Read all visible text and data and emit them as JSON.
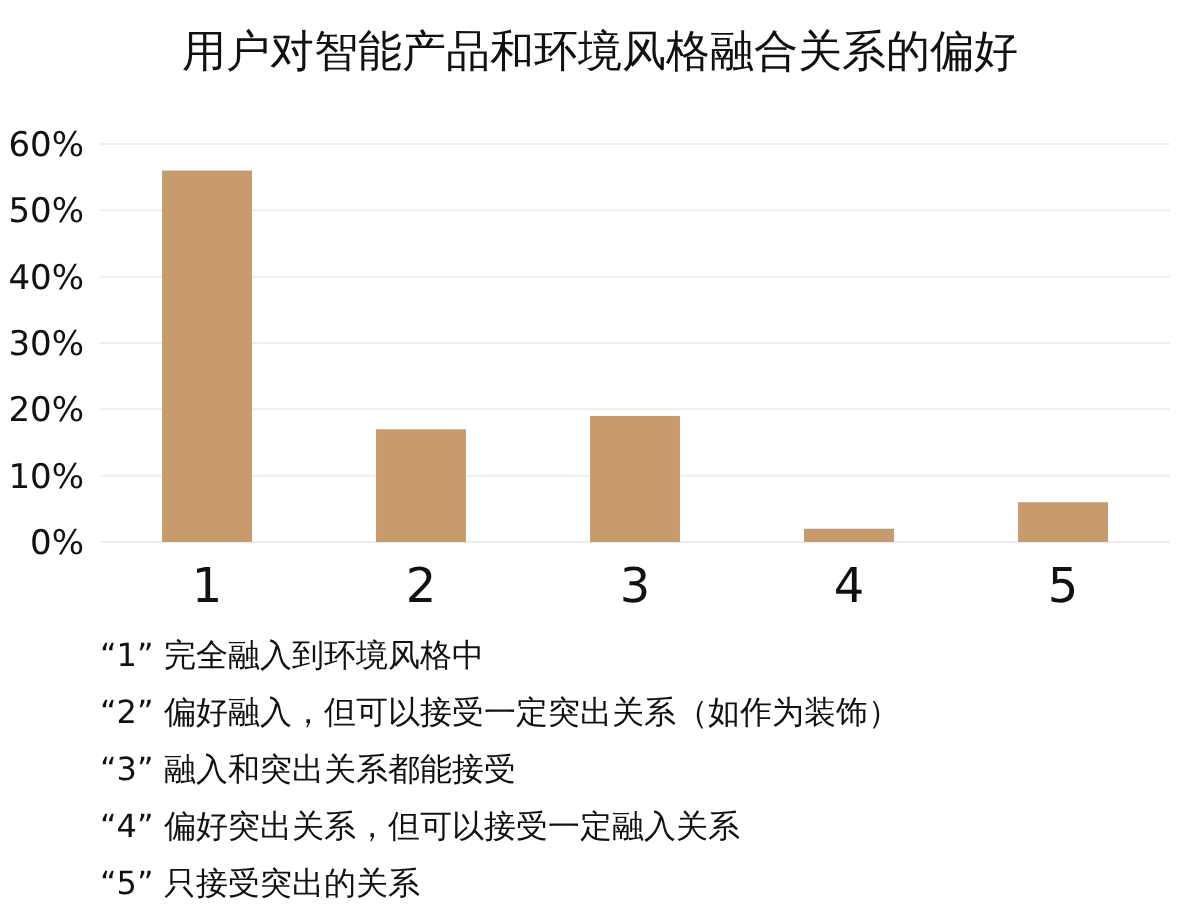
{
  "chart_data": {
    "type": "bar",
    "title": "用户对智能产品和环境风格融合关系的偏好",
    "categories": [
      "1",
      "2",
      "3",
      "4",
      "5"
    ],
    "values": [
      56,
      17,
      19,
      2,
      6
    ],
    "color": "#c79b6b",
    "ylim": [
      0,
      60
    ],
    "yticks": [
      {
        "value": 0,
        "label": "0%"
      },
      {
        "value": 10,
        "label": "10%"
      },
      {
        "value": 20,
        "label": "20%"
      },
      {
        "value": 30,
        "label": "30%"
      },
      {
        "value": 40,
        "label": "40%"
      },
      {
        "value": 50,
        "label": "50%"
      },
      {
        "value": 60,
        "label": "60%"
      }
    ],
    "grid": "y",
    "annotations": [
      "“1” 完全融入到环境风格中",
      "“2” 偏好融入，但可以接受一定突出关系（如作为装饰）",
      "“3” 融入和突出关系都能接受",
      "“4” 偏好突出关系，但可以接受一定融入关系",
      "“5” 只接受突出的关系"
    ]
  }
}
